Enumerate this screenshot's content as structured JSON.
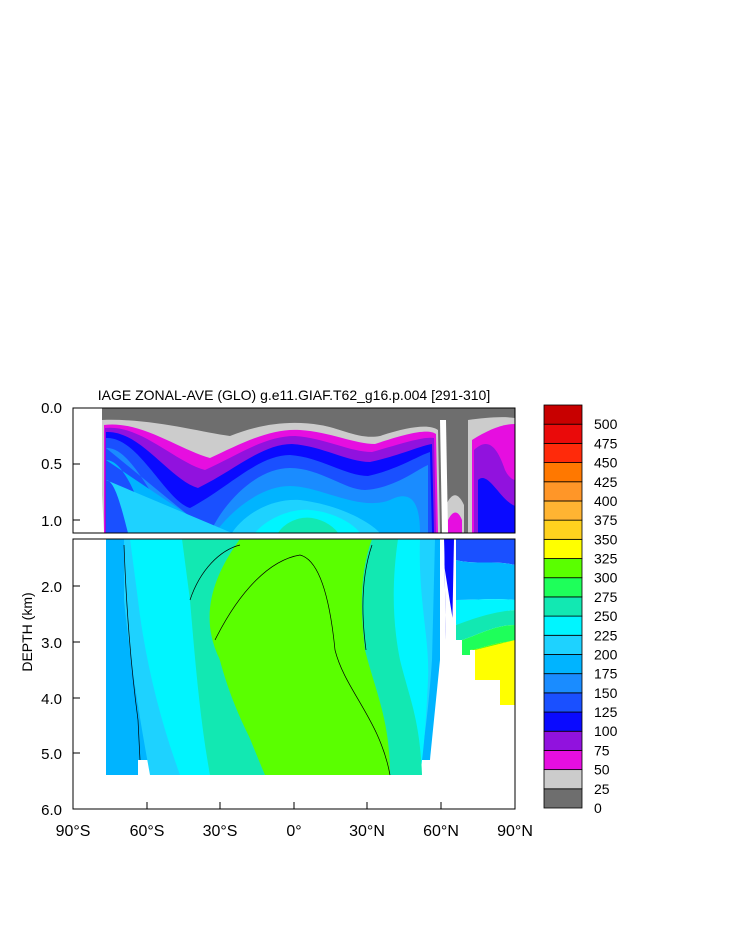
{
  "chart_data": {
    "type": "heatmap",
    "title": "IAGE ZONAL-AVE (GLO) g.e11.GIAF.T62_g16.p.004 [291-310]",
    "ylabel": "DEPTH (km)",
    "xlabel": "",
    "x_range": [
      -90,
      90
    ],
    "x_ticks": [
      "90°S",
      "60°S",
      "30°S",
      "0°",
      "30°N",
      "60°N",
      "90°N"
    ],
    "y_upper_range": [
      0.0,
      1.2
    ],
    "y_upper_ticks": [
      "0.0",
      "0.5",
      "1.0"
    ],
    "y_lower_range": [
      1.2,
      6.0
    ],
    "y_lower_ticks": [
      "2.0",
      "3.0",
      "4.0",
      "5.0",
      "6.0"
    ],
    "colorbar": {
      "levels": [
        "0",
        "25",
        "50",
        "75",
        "100",
        "125",
        "150",
        "175",
        "200",
        "225",
        "250",
        "275",
        "300",
        "325",
        "350",
        "375",
        "400",
        "425",
        "450",
        "475",
        "500"
      ],
      "colors": [
        "#6e6e6e",
        "#cccccc",
        "#e60ee0",
        "#9112de",
        "#0a0aff",
        "#1a50ff",
        "#1a8cff",
        "#00b4ff",
        "#1ed2ff",
        "#00f5ff",
        "#12e8b2",
        "#1eff5a",
        "#5aff00",
        "#ffff00",
        "#ffd21e",
        "#ffb432",
        "#ff9628",
        "#ff7800",
        "#ff2a0a",
        "#ea0a0a",
        "#c80000"
      ]
    }
  }
}
